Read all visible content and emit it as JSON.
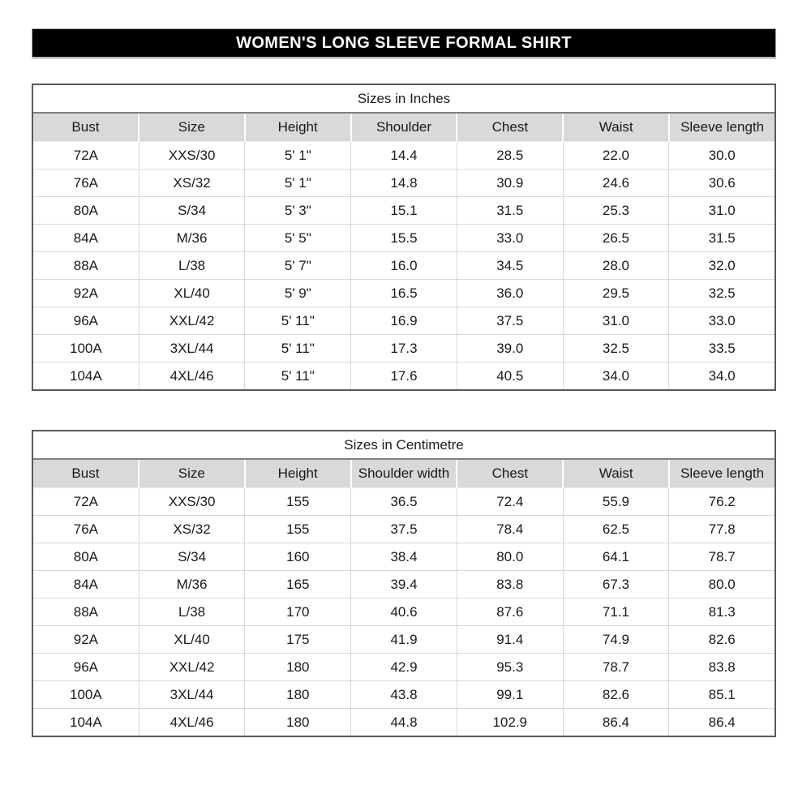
{
  "page_title": "WOMEN'S LONG SLEEVE FORMAL SHIRT",
  "colors": {
    "title_bar_bg": "#000000",
    "title_bar_text": "#ffffff",
    "header_fill": "#d9d9d9",
    "table_border": "#595959",
    "grid_line": "#d9d9d9"
  },
  "tables": [
    {
      "title": "Sizes in Inches",
      "headers": [
        "Bust",
        "Size",
        "Height",
        "Shoulder",
        "Chest",
        "Waist",
        "Sleeve length"
      ],
      "rows": [
        [
          "72A",
          "XXS/30",
          "5' 1\"",
          "14.4",
          "28.5",
          "22.0",
          "30.0"
        ],
        [
          "76A",
          "XS/32",
          "5' 1\"",
          "14.8",
          "30.9",
          "24.6",
          "30.6"
        ],
        [
          "80A",
          "S/34",
          "5' 3\"",
          "15.1",
          "31.5",
          "25.3",
          "31.0"
        ],
        [
          "84A",
          "M/36",
          "5' 5\"",
          "15.5",
          "33.0",
          "26.5",
          "31.5"
        ],
        [
          "88A",
          "L/38",
          "5' 7\"",
          "16.0",
          "34.5",
          "28.0",
          "32.0"
        ],
        [
          "92A",
          "XL/40",
          "5' 9\"",
          "16.5",
          "36.0",
          "29.5",
          "32.5"
        ],
        [
          "96A",
          "XXL/42",
          "5' 11\"",
          "16.9",
          "37.5",
          "31.0",
          "33.0"
        ],
        [
          "100A",
          "3XL/44",
          "5' 11\"",
          "17.3",
          "39.0",
          "32.5",
          "33.5"
        ],
        [
          "104A",
          "4XL/46",
          "5' 11\"",
          "17.6",
          "40.5",
          "34.0",
          "34.0"
        ]
      ]
    },
    {
      "title": "Sizes in Centimetre",
      "headers": [
        "Bust",
        "Size",
        "Height",
        "Shoulder width",
        "Chest",
        "Waist",
        "Sleeve length"
      ],
      "rows": [
        [
          "72A",
          "XXS/30",
          "155",
          "36.5",
          "72.4",
          "55.9",
          "76.2"
        ],
        [
          "76A",
          "XS/32",
          "155",
          "37.5",
          "78.4",
          "62.5",
          "77.8"
        ],
        [
          "80A",
          "S/34",
          "160",
          "38.4",
          "80.0",
          "64.1",
          "78.7"
        ],
        [
          "84A",
          "M/36",
          "165",
          "39.4",
          "83.8",
          "67.3",
          "80.0"
        ],
        [
          "88A",
          "L/38",
          "170",
          "40.6",
          "87.6",
          "71.1",
          "81.3"
        ],
        [
          "92A",
          "XL/40",
          "175",
          "41.9",
          "91.4",
          "74.9",
          "82.6"
        ],
        [
          "96A",
          "XXL/42",
          "180",
          "42.9",
          "95.3",
          "78.7",
          "83.8"
        ],
        [
          "100A",
          "3XL/44",
          "180",
          "43.8",
          "99.1",
          "82.6",
          "85.1"
        ],
        [
          "104A",
          "4XL/46",
          "180",
          "44.8",
          "102.9",
          "86.4",
          "86.4"
        ]
      ]
    }
  ]
}
